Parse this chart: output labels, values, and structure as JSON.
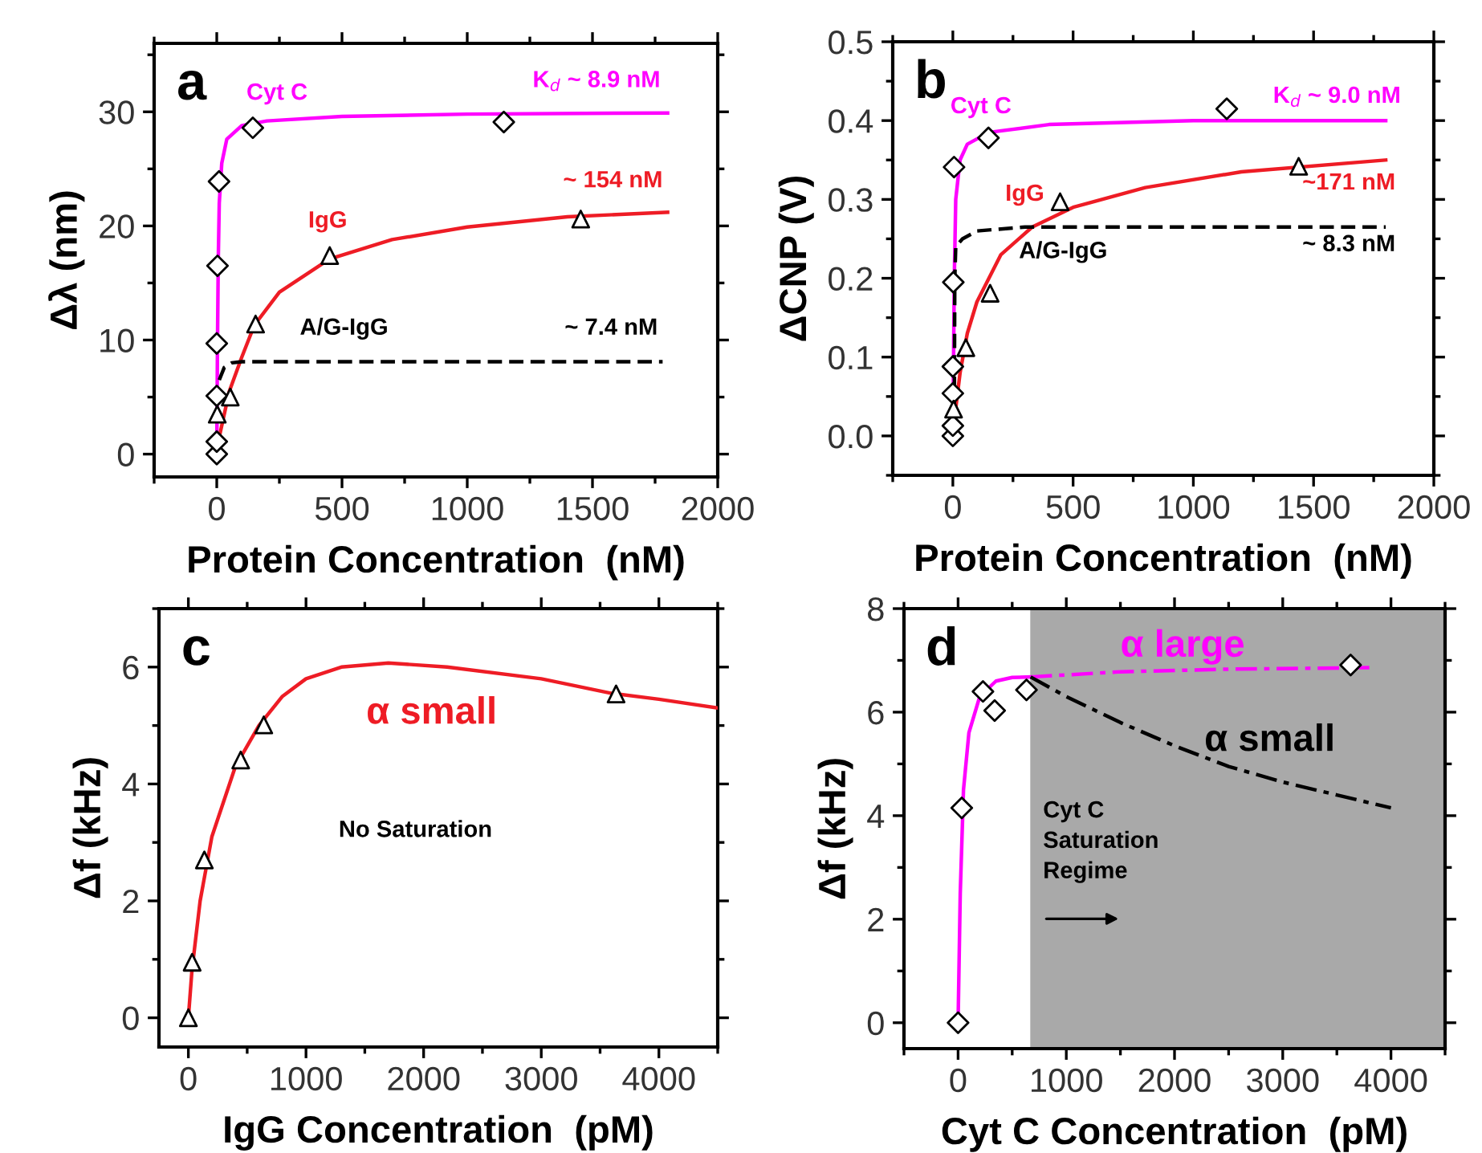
{
  "chart_data": [
    {
      "type": "scatter",
      "title": "a",
      "xlabel": "Protein Concentration  (nM)",
      "ylabel": "Δλ (nm)",
      "xlim": [
        -250,
        2000
      ],
      "ylim": [
        -2,
        36
      ],
      "xticks": [
        0,
        500,
        1000,
        1500,
        2000
      ],
      "yticks": [
        0,
        10,
        20,
        30
      ],
      "legend": false,
      "grid": false,
      "series": [
        {
          "marker": "diamond",
          "color": "#000000",
          "x": [
            0,
            0,
            0,
            0,
            3,
            9,
            144,
            1146
          ],
          "values": [
            0,
            1.1,
            5.1,
            9.7,
            16.5,
            23.9,
            28.6,
            29.1
          ]
        },
        {
          "marker": "triangle",
          "color": "#000000",
          "x": [
            2,
            54,
            155,
            451,
            1453
          ],
          "values": [
            3.5,
            5.0,
            11.4,
            17.4,
            20.6
          ]
        },
        {
          "type": "line",
          "name": "Cyt C",
          "line_style": "solid",
          "color": "#ff00ff",
          "x": [
            0,
            3,
            6,
            10,
            20,
            40,
            100,
            200,
            500,
            1000,
            1800
          ],
          "values": [
            0,
            10,
            17,
            22,
            25.5,
            27.6,
            28.8,
            29.2,
            29.6,
            29.8,
            29.9
          ]
        },
        {
          "type": "line",
          "name": "IgG",
          "line_style": "solid",
          "color": "#ee1c25",
          "x": [
            5,
            50,
            100,
            150,
            250,
            450,
            700,
            1000,
            1400,
            1800
          ],
          "values": [
            1,
            5.5,
            8.5,
            11.3,
            14.2,
            17.1,
            18.8,
            19.9,
            20.8,
            21.2
          ]
        },
        {
          "type": "line",
          "name": "A/G-IgG",
          "line_style": "dashed",
          "color": "#000000",
          "x": [
            10,
            30,
            60,
            100,
            1780
          ],
          "values": [
            6.5,
            7.6,
            8.0,
            8.1,
            8.1
          ]
        }
      ],
      "annotations": [
        "K$_{d}$ ~ 8.9 nM",
        "~ 154 nM",
        "~ 7.4 nM"
      ]
    },
    {
      "type": "scatter",
      "title": "b",
      "xlabel": "Protein Concentration  (nM)",
      "ylabel": "ΔCNP (V)",
      "xlim": [
        -250,
        2000
      ],
      "ylim": [
        -0.05,
        0.5
      ],
      "xticks": [
        0,
        500,
        1000,
        1500,
        2000
      ],
      "yticks": [
        {
          "value": 0,
          "label": "0.0"
        },
        0.1,
        0.2,
        0.3,
        0.4,
        0.5
      ],
      "legend": false,
      "grid": false,
      "series": [
        {
          "marker": "diamond",
          "color": "#000000",
          "x": [
            0,
            0,
            0,
            0,
            2,
            5,
            148,
            1139
          ],
          "values": [
            0,
            0.013,
            0.054,
            0.088,
            0.195,
            0.341,
            0.378,
            0.415
          ]
        },
        {
          "marker": "triangle",
          "color": "#000000",
          "x": [
            3,
            54,
            155,
            446,
            1438
          ],
          "values": [
            0.034,
            0.112,
            0.181,
            0.297,
            0.342
          ]
        },
        {
          "type": "line",
          "name": "Cyt C",
          "line_style": "solid",
          "color": "#ff00ff",
          "x": [
            0,
            3,
            6,
            12,
            30,
            60,
            150,
            400,
            1000,
            1800
          ],
          "values": [
            0,
            0.1,
            0.2,
            0.3,
            0.35,
            0.37,
            0.385,
            0.395,
            0.4,
            0.4
          ]
        },
        {
          "type": "line",
          "name": "IgG",
          "line_style": "solid",
          "color": "#ee1c25",
          "x": [
            10,
            30,
            60,
            100,
            200,
            330,
            500,
            800,
            1200,
            1800
          ],
          "values": [
            0.03,
            0.08,
            0.13,
            0.17,
            0.23,
            0.265,
            0.29,
            0.315,
            0.335,
            0.35
          ]
        },
        {
          "type": "line",
          "name": "A/G-IgG",
          "line_style": "dashed",
          "color": "#000000",
          "x": [
            6,
            8,
            12,
            40,
            100,
            300,
            1800
          ],
          "values": [
            0.03,
            0.2,
            0.24,
            0.25,
            0.26,
            0.265,
            0.265
          ]
        }
      ],
      "annotations": [
        "K$_{d}$ ~ 9.0 nM",
        "~171 nM",
        "~ 8.3 nM"
      ]
    },
    {
      "type": "scatter",
      "title": "c",
      "xlabel": "IgG Concentration  (pM)",
      "ylabel": "Δf (kHz)",
      "xlim": [
        -250,
        4500
      ],
      "ylim": [
        -0.5,
        7
      ],
      "xticks": [
        0,
        1000,
        2000,
        3000,
        4000
      ],
      "yticks": [
        0,
        2,
        4,
        6
      ],
      "legend": false,
      "grid": false,
      "series": [
        {
          "marker": "triangle",
          "color": "#000000",
          "x": [
            0,
            32,
            136,
            445,
            641,
            3636
          ],
          "values": [
            0.0,
            0.95,
            2.7,
            4.41,
            5.01,
            5.54
          ]
        },
        {
          "type": "line",
          "name": "α small",
          "line_style": "solid",
          "color": "#ee1c25",
          "x": [
            0,
            30,
            100,
            200,
            400,
            600,
            800,
            1000,
            1300,
            1700,
            2200,
            3000,
            3600,
            4000,
            4500
          ],
          "values": [
            0,
            0.8,
            2.0,
            3.1,
            4.3,
            5.0,
            5.5,
            5.8,
            6.0,
            6.07,
            6.0,
            5.8,
            5.55,
            5.45,
            5.3
          ]
        }
      ],
      "annotations": [
        "No Saturation"
      ]
    },
    {
      "type": "scatter",
      "title": "d",
      "xlabel": "Cyt C Concentration  (pM)",
      "ylabel": "Δf (kHz)",
      "xlim": [
        -500,
        4500
      ],
      "ylim": [
        -0.5,
        8
      ],
      "xticks": [
        0,
        1000,
        2000,
        3000,
        4000
      ],
      "yticks": [
        0,
        2,
        4,
        6,
        8
      ],
      "legend": false,
      "grid": false,
      "bands": [
        {
          "axis": "x",
          "from": 667,
          "to": 4500,
          "color": "#a9a9a9"
        }
      ],
      "series": [
        {
          "type": "line",
          "line_style": "solid",
          "color": "#ff00ff",
          "x": [
            0,
            20,
            50,
            100,
            200,
            350,
            500,
            670
          ],
          "values": [
            0,
            2.5,
            4.5,
            5.6,
            6.3,
            6.6,
            6.67,
            6.68
          ]
        },
        {
          "type": "line",
          "line_style": "dashdot",
          "color": "#ff00ff",
          "x": [
            670,
            1500,
            2500,
            3800
          ],
          "values": [
            6.68,
            6.78,
            6.83,
            6.86
          ]
        },
        {
          "type": "line",
          "line_style": "dashdot",
          "color": "#000000",
          "x": [
            670,
            1000,
            1500,
            2000,
            2500,
            3000,
            3500,
            4000
          ],
          "values": [
            6.68,
            6.3,
            5.8,
            5.35,
            4.95,
            4.65,
            4.4,
            4.15
          ]
        },
        {
          "marker": "diamond",
          "color": "#000000",
          "x": [
            0,
            34,
            230,
            338,
            632,
            3627
          ],
          "values": [
            0,
            4.15,
            6.4,
            6.03,
            6.43,
            6.91
          ]
        }
      ],
      "annotations": [
        "α large",
        "α small",
        "Cyt C\nSaturation\nRegime"
      ]
    }
  ]
}
